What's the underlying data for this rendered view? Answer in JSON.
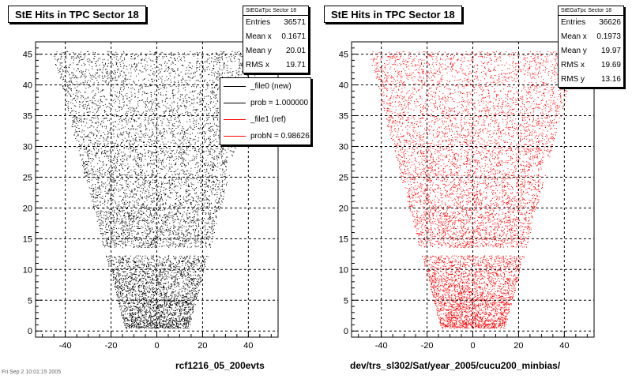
{
  "chart_data": [
    {
      "type": "scatter",
      "title": "StE Hits in TPC Sector 18",
      "xlabel": "rcf1216_05_200evts",
      "ylabel": "",
      "xlim": [
        -53,
        53
      ],
      "ylim": [
        -1,
        47
      ],
      "xticks": [
        -40,
        -20,
        0,
        20,
        40
      ],
      "yticks": [
        0,
        5,
        10,
        15,
        20,
        25,
        30,
        35,
        40,
        45
      ],
      "grid": true,
      "color": "#000000",
      "region": {
        "description_points_y": [
          0.5,
          45.3
        ],
        "half_width_bottom": 14,
        "half_width_top": 46,
        "gap_y": [
          13.6,
          12.3
        ]
      },
      "stats": {
        "header": "StEGaTpc Sector 18",
        "entries": [
          {
            "label": "Entries",
            "value": "36571"
          },
          {
            "label": "Mean x",
            "value": "0.1671"
          },
          {
            "label": "Mean y",
            "value": "20.01"
          },
          {
            "label": "RMS x",
            "value": "19.71"
          }
        ]
      },
      "legend": {
        "placement": "top-right",
        "entries": [
          {
            "label": "_file0 (new)",
            "color": "#000000"
          },
          {
            "label": "prob = 1.000000",
            "color": "#000000"
          },
          {
            "label": "_file1 (ref)",
            "color": "#ff0000"
          },
          {
            "label": "probN = 0.98626",
            "color": "#ff0000"
          }
        ]
      }
    },
    {
      "type": "scatter",
      "title": "StE Hits in TPC Sector 18",
      "xlabel": "dev/trs_sl302/Sat/year_2005/cucu200_minbias/",
      "ylabel": "",
      "xlim": [
        -53,
        53
      ],
      "ylim": [
        -1,
        47
      ],
      "xticks": [
        -40,
        -20,
        0,
        20,
        40
      ],
      "yticks": [
        0,
        5,
        10,
        15,
        20,
        25,
        30,
        35,
        40,
        45
      ],
      "grid": true,
      "color": "#ff0000",
      "stats": {
        "header": "StEGaTpc Sector 18",
        "entries": [
          {
            "label": "Entries",
            "value": "36626"
          },
          {
            "label": "Mean x",
            "value": "0.1973"
          },
          {
            "label": "Mean y",
            "value": "19.97"
          },
          {
            "label": "RMS x",
            "value": "19.69"
          },
          {
            "label": "RMS y",
            "value": "13.16"
          }
        ]
      }
    }
  ],
  "footer": {
    "timestamp": "Fri Sep  2 10:01:15 2005"
  }
}
